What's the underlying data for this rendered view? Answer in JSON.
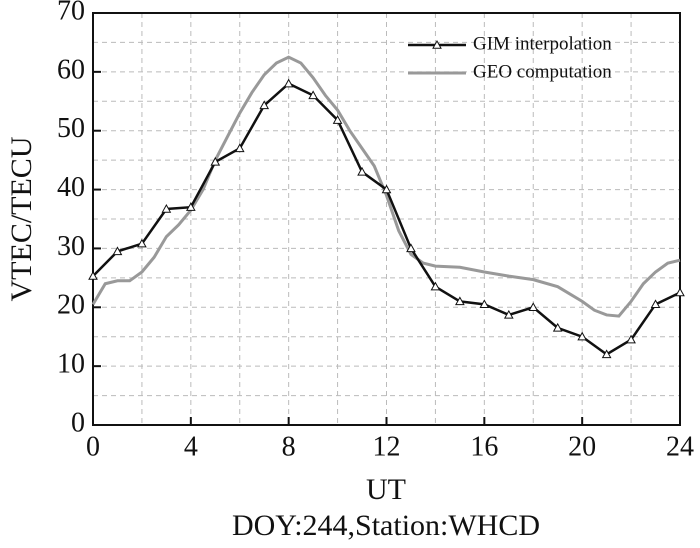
{
  "chart_data": {
    "type": "line",
    "subtitle": "DOY:244,Station:WHCD",
    "x_label": "UT",
    "y_label": "VTEC/TECU",
    "xlim": [
      0,
      24
    ],
    "ylim": [
      0,
      70
    ],
    "xticks": [
      0,
      4,
      8,
      12,
      16,
      20,
      24
    ],
    "yticks": [
      0,
      10,
      20,
      30,
      40,
      50,
      60,
      70
    ],
    "x_minor_grid": [
      2,
      6,
      10,
      14,
      18,
      22
    ],
    "y_minor_grid": [
      5,
      15,
      25,
      35,
      45,
      55,
      65
    ],
    "grid": true,
    "legend": "upper right",
    "series": [
      {
        "name": "GIM interpolation",
        "color": "#111111",
        "marker": "triangle",
        "x": [
          0,
          1,
          2,
          3,
          4,
          5,
          6,
          7,
          8,
          9,
          10,
          11,
          12,
          13,
          14,
          15,
          16,
          17,
          18,
          19,
          20,
          21,
          22,
          23,
          24
        ],
        "values": [
          25.3,
          29.5,
          30.8,
          36.7,
          37,
          44.7,
          47,
          54.3,
          58,
          56,
          51.8,
          43,
          40,
          30,
          23.5,
          21,
          20.5,
          18.7,
          20,
          16.5,
          15,
          12,
          14.5,
          20.5,
          22.5
        ]
      },
      {
        "name": "GEO computation",
        "color": "#999999",
        "x": [
          0,
          0.5,
          1,
          1.5,
          2,
          2.5,
          3,
          3.5,
          4,
          4.5,
          5,
          5.5,
          6,
          6.5,
          7,
          7.5,
          8,
          8.5,
          9,
          9.5,
          10,
          10.5,
          11,
          11.5,
          12,
          12.5,
          13,
          13.5,
          14,
          15,
          16,
          17,
          18,
          19,
          20,
          20.5,
          21,
          21.5,
          22,
          22.5,
          23,
          23.5,
          24
        ],
        "values": [
          20.5,
          24,
          24.5,
          24.5,
          26,
          28.5,
          32,
          34,
          36.5,
          40,
          45,
          49,
          53,
          56.5,
          59.5,
          61.5,
          62.5,
          61.5,
          59,
          56,
          53.5,
          50,
          47,
          44,
          39,
          33,
          29,
          27.5,
          27,
          26.8,
          26,
          25.3,
          24.7,
          23.5,
          21,
          19.5,
          18.7,
          18.5,
          21,
          24,
          26,
          27.5,
          28
        ]
      }
    ]
  }
}
